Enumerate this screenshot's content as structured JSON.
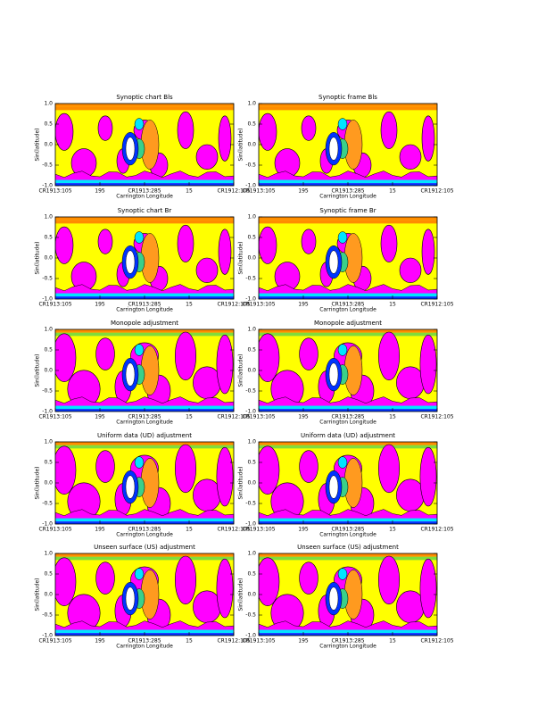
{
  "panels": [
    {
      "title": "Synoptic chart  Bls",
      "y_label": "Sin(latitude)",
      "x_label": "Carrington Longitude",
      "y_ticks": [
        "1.0",
        "0.5",
        "0.0",
        "-0.5",
        "-1.0"
      ],
      "x_ticks": [
        "CR1913:105",
        "195",
        "CR1913:285",
        "15",
        "CR1912:105"
      ]
    },
    {
      "title": "Synoptic frame  Bls",
      "y_label": "Sin(latitude)",
      "x_label": "Carrington Longitude",
      "y_ticks": [
        "1.0",
        "0.5",
        "0.0",
        "-0.5",
        "-1.0"
      ],
      "x_ticks": [
        "CR1913:105",
        "195",
        "CR1913:285",
        "15",
        "CR1912:105"
      ]
    },
    {
      "title": "Synoptic chart  Br",
      "y_label": "Sin(latitude)",
      "x_label": "Carrington Longitude",
      "y_ticks": [
        "1.0",
        "0.5",
        "0.0",
        "-0.5",
        "-1.0"
      ],
      "x_ticks": [
        "CR1913:105",
        "195",
        "CR1913:285",
        "15",
        "CR1912:105"
      ]
    },
    {
      "title": "Synoptic frame  Br",
      "y_label": "Sin(latitude)",
      "x_label": "Carrington Longitude",
      "y_ticks": [
        "1.0",
        "0.5",
        "0.0",
        "-0.5",
        "-1.0"
      ],
      "x_ticks": [
        "CR1913:105",
        "195",
        "CR1913:285",
        "15",
        "CR1912:105"
      ]
    },
    {
      "title": "Monopole adjustment",
      "y_label": "Sin(latitude)",
      "x_label": "Carrington Longitude",
      "y_ticks": [
        "1.0",
        "0.5",
        "0.0",
        "-0.5",
        "-1.0"
      ],
      "x_ticks": [
        "CR1913:105",
        "195",
        "CR1913:285",
        "15",
        "CR1912:105"
      ]
    },
    {
      "title": "Monopole adjustment",
      "y_label": "Sin(latitude)",
      "x_label": "Carrington Longitude",
      "y_ticks": [
        "1.0",
        "0.5",
        "0.0",
        "-0.5",
        "-1.0"
      ],
      "x_ticks": [
        "CR1913:105",
        "195",
        "CR1913:285",
        "15",
        "CR1912:105"
      ]
    },
    {
      "title": "Uniform data (UD) adjustment",
      "y_label": "Sin(latitude)",
      "x_label": "Carrington Longitude",
      "y_ticks": [
        "1.0",
        "0.5",
        "0.0",
        "-0.5",
        "-1.0"
      ],
      "x_ticks": [
        "CR1913:105",
        "195",
        "CR1913:285",
        "15",
        "CR1912:105"
      ]
    },
    {
      "title": "Uniform data (UD) adjustment",
      "y_label": "Sin(latitude)",
      "x_label": "Carrington Longitude",
      "y_ticks": [
        "1.0",
        "0.5",
        "0.0",
        "-0.5",
        "-1.0"
      ],
      "x_ticks": [
        "CR1913:105",
        "195",
        "CR1913:285",
        "15",
        "CR1912:105"
      ]
    },
    {
      "title": "Unseen surface (US) adjustment",
      "y_label": "Sin(latitude)",
      "x_label": "Carrington Longitude",
      "y_ticks": [
        "1.0",
        "0.5",
        "0.0",
        "-0.5",
        "-1.0"
      ],
      "x_ticks": [
        "CR1913:105",
        "195",
        "CR1913:285",
        "15",
        "CR1912:105"
      ]
    },
    {
      "title": "Unseen surface (US) adjustment",
      "y_label": "Sin(latitude)",
      "x_label": "Carrington Longitude",
      "y_ticks": [
        "1.0",
        "0.5",
        "0.0",
        "-0.5",
        "-1.0"
      ],
      "x_ticks": [
        "CR1913:105",
        "195",
        "CR1913:285",
        "15",
        "CR1912:105"
      ]
    }
  ]
}
